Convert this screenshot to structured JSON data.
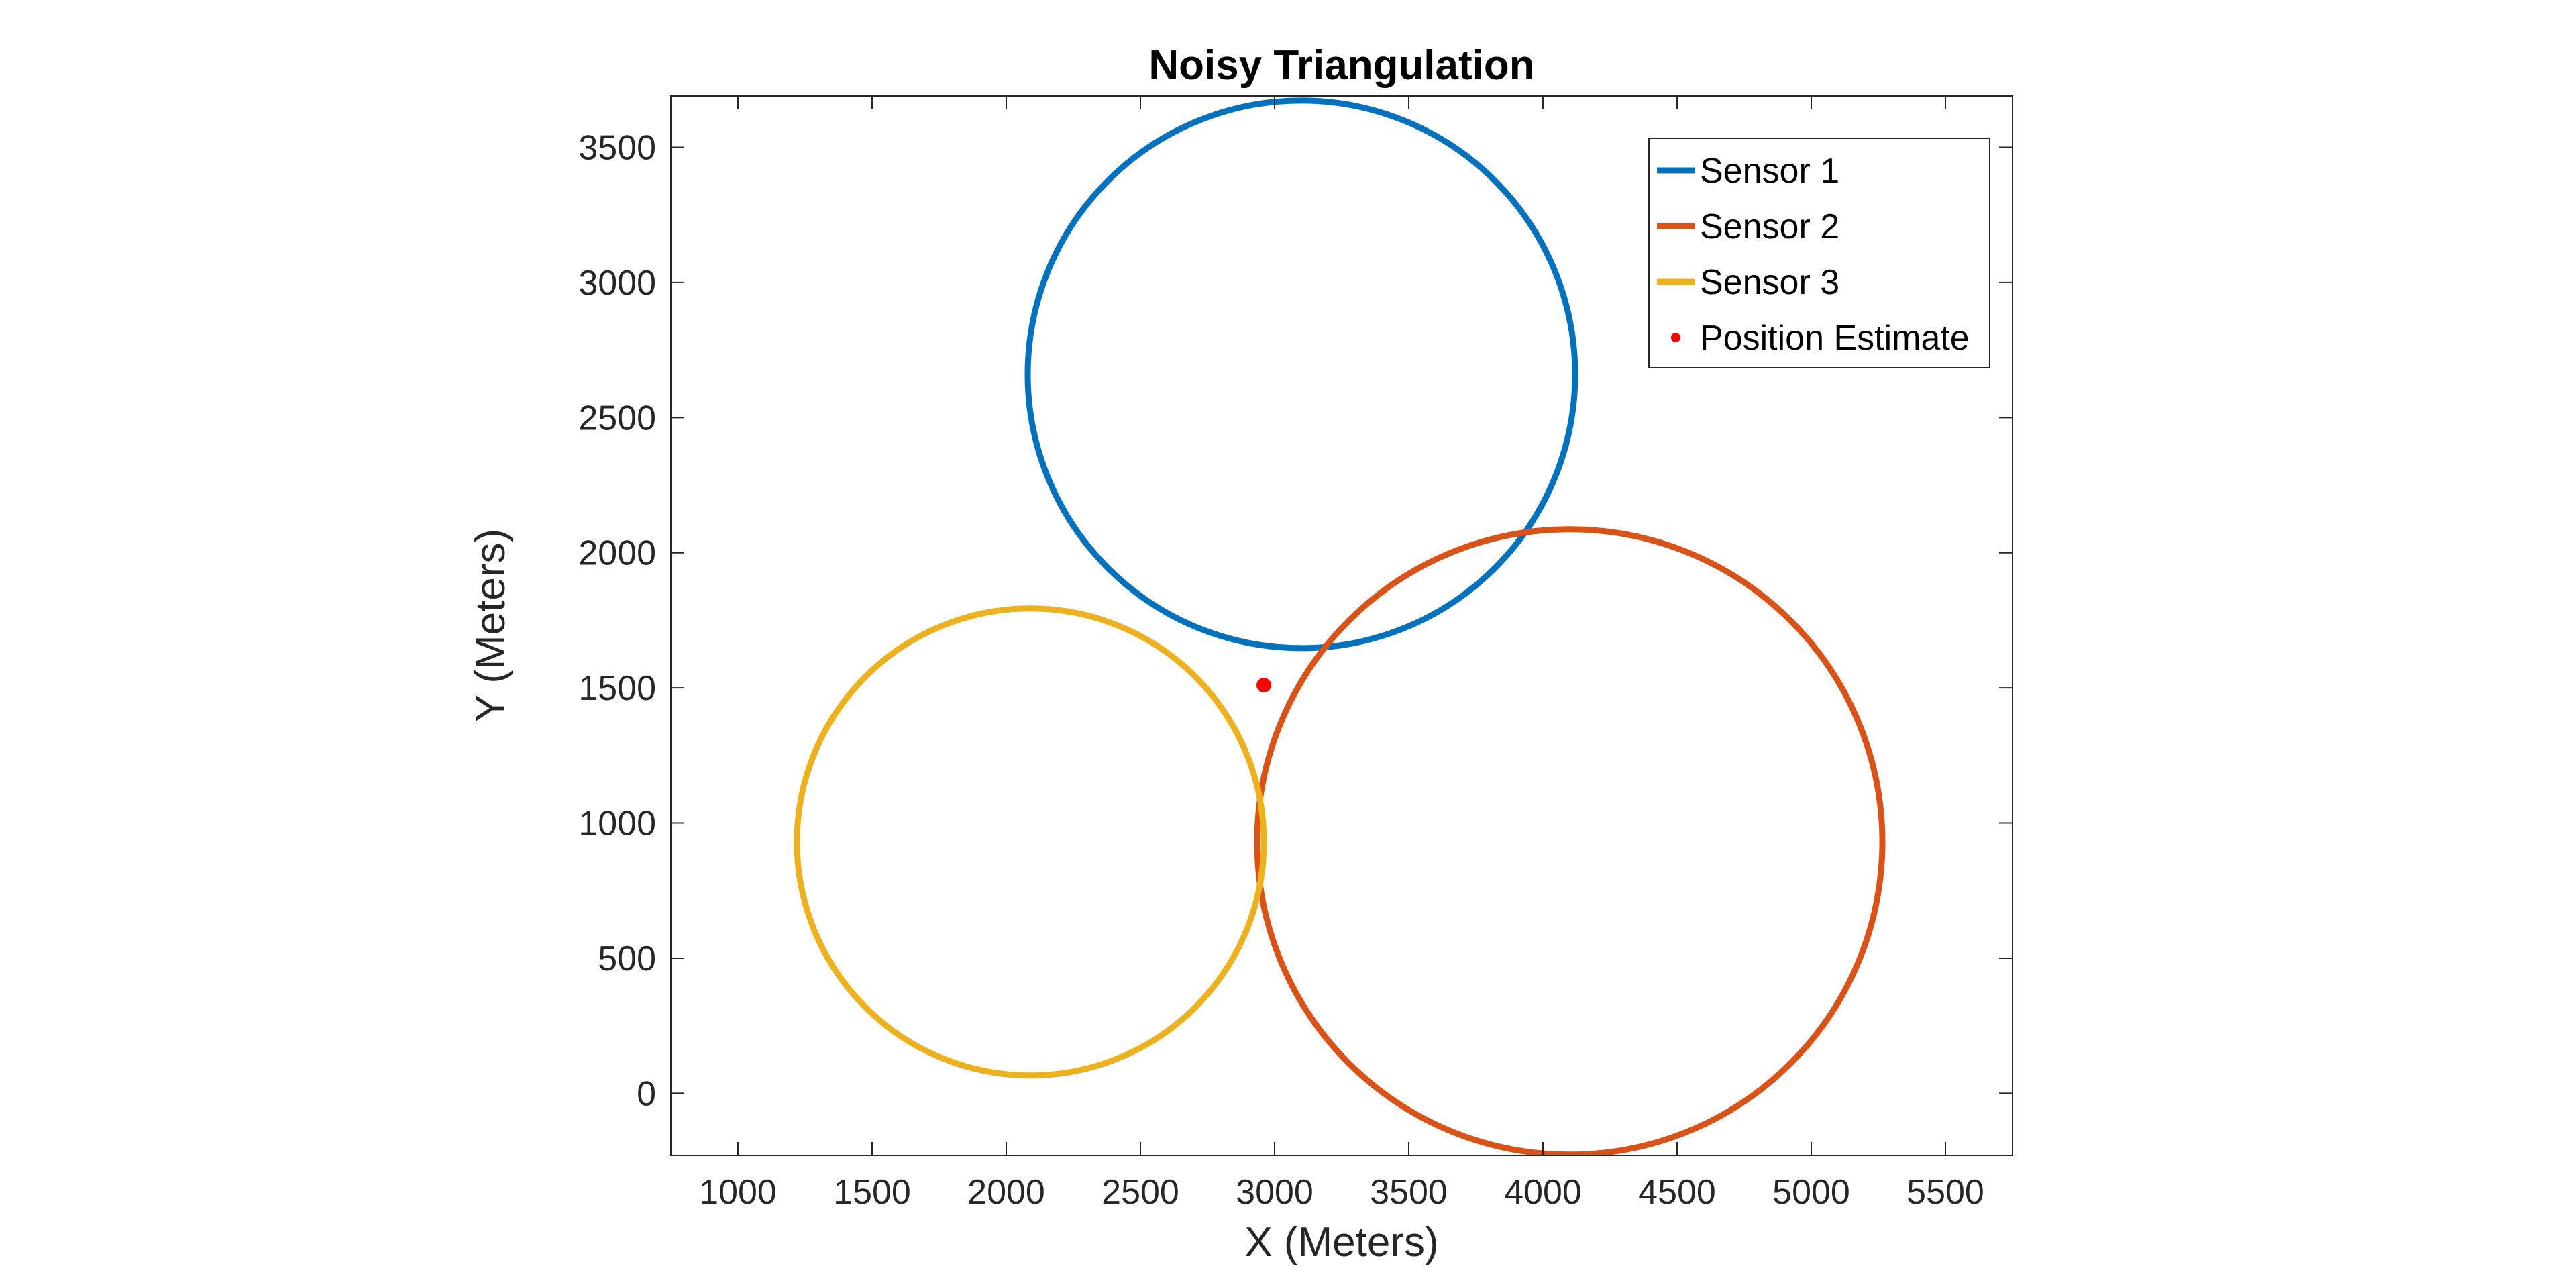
{
  "chart_data": {
    "type": "line",
    "title": "Noisy Triangulation",
    "xlabel": "X (Meters)",
    "ylabel": "Y (Meters)",
    "xlim": [
      750,
      5750
    ],
    "ylim": [
      -230,
      3690
    ],
    "xticks": [
      1000,
      1500,
      2000,
      2500,
      3000,
      3500,
      4000,
      4500,
      5000,
      5500
    ],
    "yticks": [
      0,
      500,
      1000,
      1500,
      2000,
      2500,
      3000,
      3500
    ],
    "grid": false,
    "legend_position": "top-right",
    "series": [
      {
        "name": "Sensor 1",
        "kind": "circle",
        "center": [
          3100,
          2660
        ],
        "radius": 1020,
        "color": "#0072BD"
      },
      {
        "name": "Sensor 2",
        "kind": "circle",
        "center": [
          4100,
          930
        ],
        "radius": 1165,
        "color": "#D95319"
      },
      {
        "name": "Sensor 3",
        "kind": "circle",
        "center": [
          2090,
          930
        ],
        "radius": 870,
        "color": "#EDB120"
      },
      {
        "name": "Position Estimate",
        "kind": "point",
        "x": 2960,
        "y": 1510,
        "color": "#FF0000"
      }
    ]
  }
}
